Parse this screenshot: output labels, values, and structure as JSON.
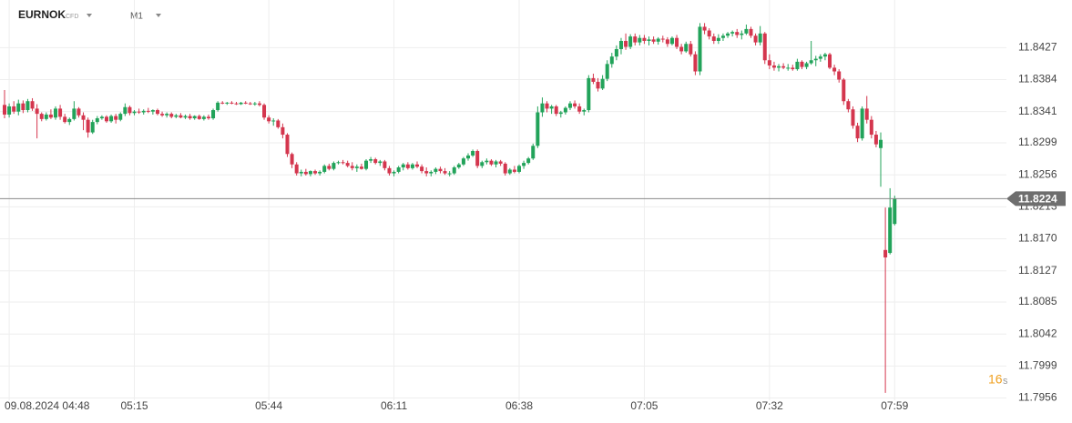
{
  "header": {
    "symbol": "EURNOK",
    "instrument": "CFD",
    "interval": "M1"
  },
  "chart_data": {
    "type": "candlestick",
    "up_color": "#22a35a",
    "down_color": "#d4364e",
    "ylim": [
      11.7953,
      11.8491
    ],
    "yticks": [
      11.8427,
      11.8384,
      11.8341,
      11.8299,
      11.8256,
      11.8213,
      {
        "value": 11.817,
        "label": "11.8170"
      },
      11.8127,
      11.8085,
      11.8042,
      11.7999,
      11.7956
    ],
    "xticks": [
      {
        "value": "04:48",
        "label": "09.08.2024 04:48"
      },
      "05:15",
      "05:44",
      "06:11",
      "06:38",
      "07:05",
      "07:32",
      "07:59"
    ],
    "grid": true,
    "last_price": 11.8224,
    "countdown": "16",
    "countdown_unit": "s",
    "x": [
      "04:47",
      "04:48",
      "04:49",
      "04:50",
      "04:51",
      "04:52",
      "04:53",
      "04:54",
      "04:55",
      "04:56",
      "04:57",
      "04:58",
      "04:59",
      "05:00",
      "05:01",
      "05:02",
      "05:03",
      "05:04",
      "05:05",
      "05:06",
      "05:07",
      "05:08",
      "05:09",
      "05:10",
      "05:11",
      "05:12",
      "05:13",
      "05:14",
      "05:15",
      "05:16",
      "05:17",
      "05:18",
      "05:19",
      "05:20",
      "05:21",
      "05:22",
      "05:23",
      "05:24",
      "05:25",
      "05:26",
      "05:27",
      "05:28",
      "05:29",
      "05:30",
      "05:31",
      "05:32",
      "05:33",
      "05:34",
      "05:35",
      "05:36",
      "05:37",
      "05:38",
      "05:39",
      "05:40",
      "05:41",
      "05:42",
      "05:43",
      "05:44",
      "05:45",
      "05:46",
      "05:47",
      "05:48",
      "05:49",
      "05:50",
      "05:51",
      "05:52",
      "05:53",
      "05:54",
      "05:55",
      "05:56",
      "05:57",
      "05:58",
      "05:59",
      "06:00",
      "06:01",
      "06:02",
      "06:03",
      "06:04",
      "06:05",
      "06:06",
      "06:07",
      "06:08",
      "06:09",
      "06:10",
      "06:11",
      "06:12",
      "06:13",
      "06:14",
      "06:15",
      "06:16",
      "06:17",
      "06:18",
      "06:19",
      "06:20",
      "06:21",
      "06:22",
      "06:23",
      "06:24",
      "06:25",
      "06:26",
      "06:27",
      "06:28",
      "06:29",
      "06:30",
      "06:31",
      "06:32",
      "06:33",
      "06:34",
      "06:35",
      "06:36",
      "06:37",
      "06:38",
      "06:39",
      "06:40",
      "06:41",
      "06:42",
      "06:43",
      "06:44",
      "06:45",
      "06:46",
      "06:47",
      "06:48",
      "06:49",
      "06:50",
      "06:51",
      "06:52",
      "06:53",
      "06:54",
      "06:55",
      "06:56",
      "06:57",
      "06:58",
      "06:59",
      "07:00",
      "07:01",
      "07:02",
      "07:03",
      "07:04",
      "07:05",
      "07:06",
      "07:07",
      "07:08",
      "07:09",
      "07:10",
      "07:11",
      "07:12",
      "07:13",
      "07:14",
      "07:15",
      "07:16",
      "07:17",
      "07:18",
      "07:19",
      "07:20",
      "07:21",
      "07:22",
      "07:23",
      "07:24",
      "07:25",
      "07:26",
      "07:27",
      "07:28",
      "07:29",
      "07:30",
      "07:31",
      "07:32",
      "07:33",
      "07:34",
      "07:35",
      "07:36",
      "07:37",
      "07:38",
      "07:39",
      "07:40",
      "07:41",
      "07:42",
      "07:43",
      "07:44",
      "07:45",
      "07:46",
      "07:47",
      "07:48",
      "07:49",
      "07:50",
      "07:51",
      "07:52",
      "07:53",
      "07:54",
      "07:55",
      "07:56",
      "07:57",
      "07:58",
      "07:59"
    ],
    "candles": [
      [
        11.835,
        11.837,
        11.8332,
        11.8337
      ],
      [
        11.8337,
        11.8352,
        11.8333,
        11.8348
      ],
      [
        11.8348,
        11.8355,
        11.8338,
        11.8341
      ],
      [
        11.8341,
        11.8357,
        11.8336,
        11.8352
      ],
      [
        11.8352,
        11.8356,
        11.8339,
        11.8343
      ],
      [
        11.8343,
        11.8358,
        11.834,
        11.8355
      ],
      [
        11.8355,
        11.8359,
        11.8342,
        11.8345
      ],
      [
        11.8345,
        11.8351,
        11.8305,
        11.8338
      ],
      [
        11.8338,
        11.834,
        11.8328,
        11.8331
      ],
      [
        11.8331,
        11.834,
        11.8329,
        11.8337
      ],
      [
        11.8337,
        11.8344,
        11.8331,
        11.8333
      ],
      [
        11.8333,
        11.8348,
        11.833,
        11.8345
      ],
      [
        11.8345,
        11.835,
        11.833,
        11.8334
      ],
      [
        11.8334,
        11.8338,
        11.8325,
        11.8327
      ],
      [
        11.8327,
        11.8333,
        11.8323,
        11.8331
      ],
      [
        11.8331,
        11.8355,
        11.8329,
        11.8345
      ],
      [
        11.8345,
        11.8347,
        11.8333,
        11.8336
      ],
      [
        11.8336,
        11.834,
        11.8316,
        11.833
      ],
      [
        11.833,
        11.8333,
        11.8306,
        11.8313
      ],
      [
        11.8313,
        11.833,
        11.8311,
        11.8327
      ],
      [
        11.8327,
        11.8335,
        11.8324,
        11.8332
      ],
      [
        11.8332,
        11.8336,
        11.833,
        11.8334
      ],
      [
        11.8334,
        11.8336,
        11.8326,
        11.8328
      ],
      [
        11.8328,
        11.8337,
        11.8326,
        11.8335
      ],
      [
        11.8335,
        11.8338,
        11.8325,
        11.833
      ],
      [
        11.833,
        11.834,
        11.8328,
        11.8338
      ],
      [
        11.8338,
        11.8352,
        11.8335,
        11.8347
      ],
      [
        11.8347,
        11.8349,
        11.8336,
        11.8339
      ],
      [
        11.8339,
        11.8343,
        11.8336,
        11.8341
      ],
      [
        11.8341,
        11.8345,
        11.8338,
        11.834
      ],
      [
        11.834,
        11.8344,
        11.8337,
        11.8342
      ],
      [
        11.8342,
        11.8346,
        11.8339,
        11.8341
      ],
      [
        11.8341,
        11.8344,
        11.8337,
        11.8343
      ],
      [
        11.8343,
        11.8345,
        11.8336,
        11.8338
      ],
      [
        11.8338,
        11.8341,
        11.8334,
        11.8336
      ],
      [
        11.8336,
        11.834,
        11.8333,
        11.8338
      ],
      [
        11.8338,
        11.834,
        11.8332,
        11.8334
      ],
      [
        11.8334,
        11.8338,
        11.8332,
        11.8336
      ],
      [
        11.8336,
        11.8339,
        11.8332,
        11.8333
      ],
      [
        11.8333,
        11.8337,
        11.8331,
        11.8335
      ],
      [
        11.8335,
        11.8338,
        11.833,
        11.8332
      ],
      [
        11.8332,
        11.8336,
        11.833,
        11.8335
      ],
      [
        11.8335,
        11.8337,
        11.833,
        11.8331
      ],
      [
        11.8331,
        11.8336,
        11.8329,
        11.8334
      ],
      [
        11.8334,
        11.8337,
        11.833,
        11.8332
      ],
      [
        11.8332,
        11.8345,
        11.833,
        11.8343
      ],
      [
        11.8343,
        11.8355,
        11.8341,
        11.8353
      ],
      [
        11.8353,
        11.8355,
        11.8351,
        11.8352
      ],
      [
        11.8352,
        11.8354,
        11.835,
        11.8353
      ],
      [
        11.8353,
        11.8355,
        11.8351,
        11.8352
      ],
      [
        11.8352,
        11.8354,
        11.835,
        11.8351
      ],
      [
        11.8351,
        11.8354,
        11.835,
        11.8353
      ],
      [
        11.8353,
        11.8355,
        11.8351,
        11.8352
      ],
      [
        11.8352,
        11.8354,
        11.835,
        11.8351
      ],
      [
        11.8351,
        11.8354,
        11.8349,
        11.8352
      ],
      [
        11.8352,
        11.8355,
        11.8348,
        11.835
      ],
      [
        11.835,
        11.8352,
        11.833,
        11.8333
      ],
      [
        11.8333,
        11.8336,
        11.8325,
        11.8328
      ],
      [
        11.8328,
        11.8332,
        11.8322,
        11.8329
      ],
      [
        11.8329,
        11.8331,
        11.8318,
        11.832
      ],
      [
        11.832,
        11.8325,
        11.8305,
        11.831
      ],
      [
        11.831,
        11.8312,
        11.828,
        11.8284
      ],
      [
        11.8284,
        11.8286,
        11.8265,
        11.827
      ],
      [
        11.827,
        11.8273,
        11.8255,
        11.8258
      ],
      [
        11.8258,
        11.8263,
        11.8254,
        11.826
      ],
      [
        11.826,
        11.8264,
        11.8255,
        11.8257
      ],
      [
        11.8257,
        11.8262,
        11.8254,
        11.8261
      ],
      [
        11.8261,
        11.8263,
        11.8256,
        11.8258
      ],
      [
        11.8258,
        11.8262,
        11.8255,
        11.826
      ],
      [
        11.826,
        11.827,
        11.8258,
        11.8268
      ],
      [
        11.8268,
        11.8271,
        11.8262,
        11.8264
      ],
      [
        11.8264,
        11.8274,
        11.8262,
        11.8272
      ],
      [
        11.8272,
        11.8275,
        11.827,
        11.8273
      ],
      [
        11.8273,
        11.8276,
        11.827,
        11.8272
      ],
      [
        11.8272,
        11.8275,
        11.8266,
        11.8268
      ],
      [
        11.8268,
        11.8273,
        11.8262,
        11.8265
      ],
      [
        11.8265,
        11.827,
        11.826,
        11.8267
      ],
      [
        11.8267,
        11.8271,
        11.8263,
        11.8264
      ],
      [
        11.8264,
        11.8277,
        11.8262,
        11.8275
      ],
      [
        11.8275,
        11.828,
        11.8272,
        11.8277
      ],
      [
        11.8277,
        11.8279,
        11.827,
        11.8272
      ],
      [
        11.8272,
        11.8276,
        11.8268,
        11.8274
      ],
      [
        11.8274,
        11.8276,
        11.8262,
        11.8265
      ],
      [
        11.8265,
        11.8268,
        11.8255,
        11.8258
      ],
      [
        11.8258,
        11.8262,
        11.8254,
        11.826
      ],
      [
        11.826,
        11.8268,
        11.8258,
        11.8266
      ],
      [
        11.8266,
        11.8272,
        11.8262,
        11.827
      ],
      [
        11.827,
        11.8273,
        11.8263,
        11.8265
      ],
      [
        11.8265,
        11.8272,
        11.8263,
        11.827
      ],
      [
        11.827,
        11.8274,
        11.8265,
        11.8267
      ],
      [
        11.8267,
        11.827,
        11.8258,
        11.8261
      ],
      [
        11.8261,
        11.8266,
        11.8254,
        11.8258
      ],
      [
        11.8258,
        11.8262,
        11.8254,
        11.826
      ],
      [
        11.826,
        11.8266,
        11.8257,
        11.8264
      ],
      [
        11.8264,
        11.8267,
        11.8258,
        11.8261
      ],
      [
        11.8261,
        11.8265,
        11.8256,
        11.8258
      ],
      [
        11.8258,
        11.8261,
        11.8254,
        11.8258
      ],
      [
        11.8258,
        11.8268,
        11.8256,
        11.8266
      ],
      [
        11.8266,
        11.8272,
        11.8264,
        11.827
      ],
      [
        11.827,
        11.828,
        11.8268,
        11.8278
      ],
      [
        11.8278,
        11.8285,
        11.8275,
        11.8282
      ],
      [
        11.8282,
        11.829,
        11.828,
        11.8288
      ],
      [
        11.8288,
        11.829,
        11.8265,
        11.8268
      ],
      [
        11.8268,
        11.8275,
        11.8265,
        11.8273
      ],
      [
        11.8273,
        11.8278,
        11.827,
        11.8275
      ],
      [
        11.8275,
        11.8277,
        11.8268,
        11.827
      ],
      [
        11.827,
        11.8276,
        11.8266,
        11.8274
      ],
      [
        11.8274,
        11.8276,
        11.8268,
        11.8271
      ],
      [
        11.8271,
        11.8273,
        11.8255,
        11.8258
      ],
      [
        11.8258,
        11.8265,
        11.8256,
        11.8263
      ],
      [
        11.8263,
        11.8268,
        11.8258,
        11.826
      ],
      [
        11.826,
        11.827,
        11.8258,
        11.8268
      ],
      [
        11.8268,
        11.8275,
        11.8264,
        11.8272
      ],
      [
        11.8272,
        11.828,
        11.827,
        11.8278
      ],
      [
        11.8278,
        11.8298,
        11.8276,
        11.8295
      ],
      [
        11.8295,
        11.8348,
        11.8292,
        11.834
      ],
      [
        11.834,
        11.836,
        11.8334,
        11.8352
      ],
      [
        11.8352,
        11.8355,
        11.834,
        11.8345
      ],
      [
        11.8345,
        11.835,
        11.8338,
        11.8348
      ],
      [
        11.8348,
        11.835,
        11.8335,
        11.8338
      ],
      [
        11.8338,
        11.8342,
        11.8333,
        11.834
      ],
      [
        11.834,
        11.8348,
        11.8337,
        11.8346
      ],
      [
        11.8346,
        11.8355,
        11.8343,
        11.8352
      ],
      [
        11.8352,
        11.8356,
        11.8345,
        11.8348
      ],
      [
        11.8348,
        11.8352,
        11.8338,
        11.8341
      ],
      [
        11.8341,
        11.8345,
        11.8336,
        11.8343
      ],
      [
        11.8343,
        11.839,
        11.834,
        11.8386
      ],
      [
        11.8386,
        11.8392,
        11.8378,
        11.8381
      ],
      [
        11.8381,
        11.8386,
        11.8368,
        11.8372
      ],
      [
        11.8372,
        11.839,
        11.837,
        11.8385
      ],
      [
        11.8385,
        11.841,
        11.8382,
        11.8405
      ],
      [
        11.8405,
        11.842,
        11.84,
        11.8415
      ],
      [
        11.8415,
        11.843,
        11.841,
        11.8425
      ],
      [
        11.8425,
        11.844,
        11.8418,
        11.8436
      ],
      [
        11.8436,
        11.8446,
        11.8424,
        11.8428
      ],
      [
        11.8428,
        11.8445,
        11.8425,
        11.8442
      ],
      [
        11.8442,
        11.8446,
        11.843,
        11.8434
      ],
      [
        11.8434,
        11.8444,
        11.843,
        11.844
      ],
      [
        11.844,
        11.8444,
        11.8432,
        11.8436
      ],
      [
        11.8436,
        11.8442,
        11.843,
        11.8438
      ],
      [
        11.8438,
        11.8442,
        11.8432,
        11.8435
      ],
      [
        11.8435,
        11.8441,
        11.8431,
        11.8439
      ],
      [
        11.8439,
        11.8443,
        11.8434,
        11.8438
      ],
      [
        11.8438,
        11.8441,
        11.8428,
        11.8432
      ],
      [
        11.8432,
        11.8442,
        11.843,
        11.844
      ],
      [
        11.844,
        11.8444,
        11.8425,
        11.8428
      ],
      [
        11.8428,
        11.8432,
        11.8418,
        11.8422
      ],
      [
        11.8422,
        11.8435,
        11.842,
        11.8432
      ],
      [
        11.8432,
        11.8436,
        11.8415,
        11.8418
      ],
      [
        11.8418,
        11.8422,
        11.839,
        11.8395
      ],
      [
        11.8395,
        11.846,
        11.839,
        11.8455
      ],
      [
        11.8455,
        11.846,
        11.8445,
        11.845
      ],
      [
        11.845,
        11.8453,
        11.8438,
        11.8442
      ],
      [
        11.8442,
        11.8446,
        11.8432,
        11.8436
      ],
      [
        11.8436,
        11.8445,
        11.8432,
        11.844
      ],
      [
        11.844,
        11.8446,
        11.8436,
        11.8443
      ],
      [
        11.8443,
        11.8448,
        11.844,
        11.8446
      ],
      [
        11.8446,
        11.845,
        11.8442,
        11.8448
      ],
      [
        11.8448,
        11.8452,
        11.844,
        11.8444
      ],
      [
        11.8444,
        11.845,
        11.8438,
        11.8446
      ],
      [
        11.8446,
        11.8458,
        11.8444,
        11.8452
      ],
      [
        11.8452,
        11.8455,
        11.844,
        11.8443
      ],
      [
        11.8443,
        11.8446,
        11.843,
        11.8434
      ],
      [
        11.8434,
        11.8456,
        11.843,
        11.8446
      ],
      [
        11.8446,
        11.8448,
        11.8405,
        11.841
      ],
      [
        11.841,
        11.8418,
        11.8398,
        11.8403
      ],
      [
        11.8403,
        11.8408,
        11.8396,
        11.84
      ],
      [
        11.84,
        11.8405,
        11.8395,
        11.8402
      ],
      [
        11.8402,
        11.8406,
        11.8398,
        11.84
      ],
      [
        11.84,
        11.8405,
        11.8396,
        11.84
      ],
      [
        11.84,
        11.8404,
        11.8396,
        11.8398
      ],
      [
        11.8398,
        11.8412,
        11.8396,
        11.8408
      ],
      [
        11.8408,
        11.841,
        11.8398,
        11.8401
      ],
      [
        11.8401,
        11.8408,
        11.8398,
        11.8406
      ],
      [
        11.8406,
        11.8436,
        11.8404,
        11.841
      ],
      [
        11.841,
        11.8416,
        11.8402,
        11.8412
      ],
      [
        11.8412,
        11.8418,
        11.8408,
        11.8415
      ],
      [
        11.8415,
        11.842,
        11.841,
        11.8418
      ],
      [
        11.8418,
        11.842,
        11.8398,
        11.84
      ],
      [
        11.84,
        11.8404,
        11.839,
        11.8395
      ],
      [
        11.8395,
        11.8398,
        11.838,
        11.8384
      ],
      [
        11.8384,
        11.8386,
        11.835,
        11.8355
      ],
      [
        11.8355,
        11.8358,
        11.834,
        11.8344
      ],
      [
        11.8344,
        11.8348,
        11.8318,
        11.8322
      ],
      [
        11.8322,
        11.8326,
        11.83,
        11.8305
      ],
      [
        11.8305,
        11.8348,
        11.8302,
        11.8345
      ],
      [
        11.8345,
        11.8362,
        11.8325,
        11.833
      ],
      [
        11.833,
        11.8335,
        11.8305,
        11.831
      ],
      [
        11.831,
        11.8315,
        11.8293,
        11.8297
      ],
      [
        11.8292,
        11.8313,
        11.824,
        11.8303
      ],
      [
        11.8155,
        11.8212,
        11.7963,
        11.8145
      ],
      [
        11.8151,
        11.8238,
        11.8149,
        11.8212
      ],
      [
        11.819,
        11.8228,
        11.8188,
        11.8224
      ]
    ]
  }
}
